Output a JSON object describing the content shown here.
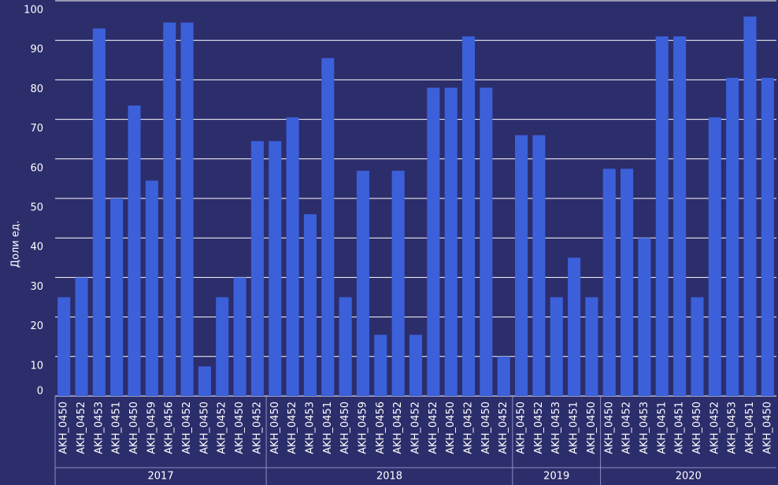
{
  "chart_data": {
    "type": "bar",
    "y_label": "Доли ед.",
    "categories": [
      "AKH_0450",
      "AKH_0452",
      "AKH_0453",
      "AKH_0451",
      "AKH_0450",
      "AKH_0459",
      "AKH_0456",
      "AKH_0452",
      "AKH_0450",
      "AKH_0452",
      "AKH_0450",
      "AKH_0452",
      "AKH_0450",
      "AKH_0452",
      "AKH_0453",
      "AKH_0451",
      "AKH_0450",
      "AKH_0459",
      "AKH_0456",
      "AKH_0452",
      "AKH_0452",
      "AKH_0452",
      "AKH_0450",
      "AKH_0452",
      "AKH_0450",
      "AKH_0452",
      "AKH_0450",
      "AKH_0452",
      "AKH_0453",
      "AKH_0451",
      "AKH_0450",
      "AKH_0450",
      "AKH_0452",
      "AKH_0453",
      "AKH_0451",
      "AKH_0451",
      "AKH_0450",
      "AKH_0452",
      "AKH_0453",
      "AKH_0451",
      "AKH_0450"
    ],
    "category_groups": [
      "2017",
      "2017",
      "2017",
      "2017",
      "2017",
      "2017",
      "2017",
      "2017",
      "2017",
      "2017",
      "2017",
      "2017",
      "2018",
      "2018",
      "2018",
      "2018",
      "2018",
      "2018",
      "2018",
      "2018",
      "2018",
      "2018",
      "2018",
      "2018",
      "2018",
      "2018",
      "2019",
      "2019",
      "2019",
      "2019",
      "2019",
      "2020",
      "2020",
      "2020",
      "2020",
      "2020",
      "2020",
      "2020",
      "2020",
      "2020",
      "2020"
    ],
    "values": [
      25,
      30,
      93,
      50,
      73.5,
      54.5,
      94.5,
      94.5,
      7.5,
      25,
      30,
      64.5,
      64.5,
      70.5,
      46,
      85.5,
      25,
      57,
      15.5,
      57,
      15.5,
      78,
      78,
      91,
      78,
      10,
      66,
      66,
      25,
      35,
      25,
      57.5,
      57.5,
      40,
      91,
      91,
      25,
      70.5,
      80.5,
      96,
      80.5
    ],
    "color": "#3b60d9",
    "ylim": [
      0,
      100
    ],
    "yticks": [
      0,
      10,
      20,
      30,
      40,
      50,
      60,
      70,
      80,
      90,
      100
    ],
    "grid": true
  }
}
